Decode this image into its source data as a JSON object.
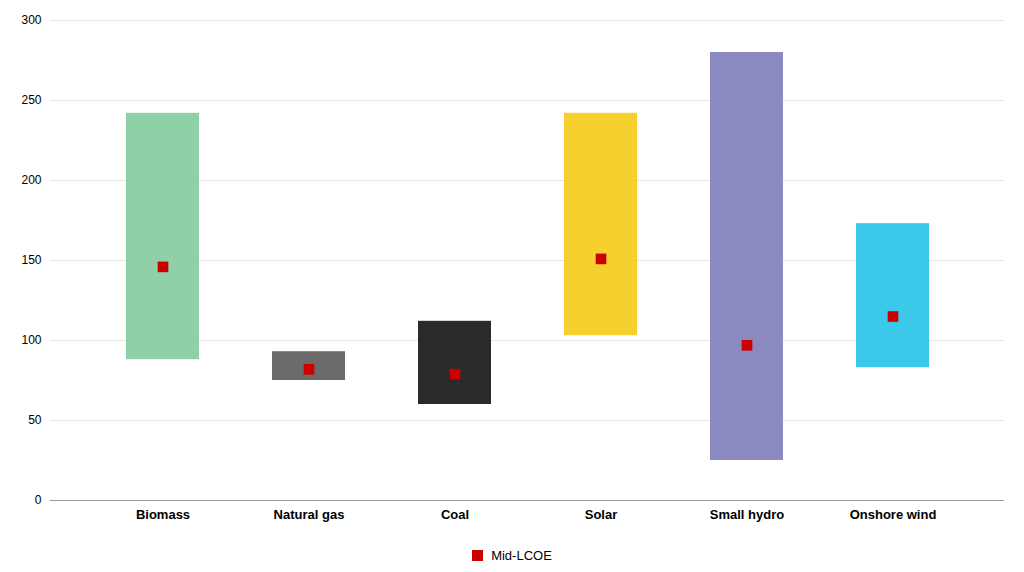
{
  "chart_data": {
    "type": "bar",
    "categories": [
      "Biomass",
      "Natural gas",
      "Coal",
      "Solar",
      "Small hydro",
      "Onshore wind"
    ],
    "low": [
      88,
      75,
      60,
      103,
      25,
      83
    ],
    "high": [
      242,
      93,
      112,
      242,
      280,
      173
    ],
    "colors": [
      "#8FD0A8",
      "#6B6B6B",
      "#2A2A2A",
      "#F5D02F",
      "#8A89C0",
      "#3CC8E8"
    ],
    "series": [
      {
        "name": "Mid-LCOE",
        "color": "#CC0000",
        "marker": "square",
        "values": [
          146,
          82,
          79,
          151,
          97,
          115
        ]
      }
    ],
    "ylim": [
      0,
      300
    ],
    "yticks": [
      0,
      50,
      100,
      150,
      200,
      250,
      300
    ],
    "grid": true,
    "legend": "bottom"
  }
}
